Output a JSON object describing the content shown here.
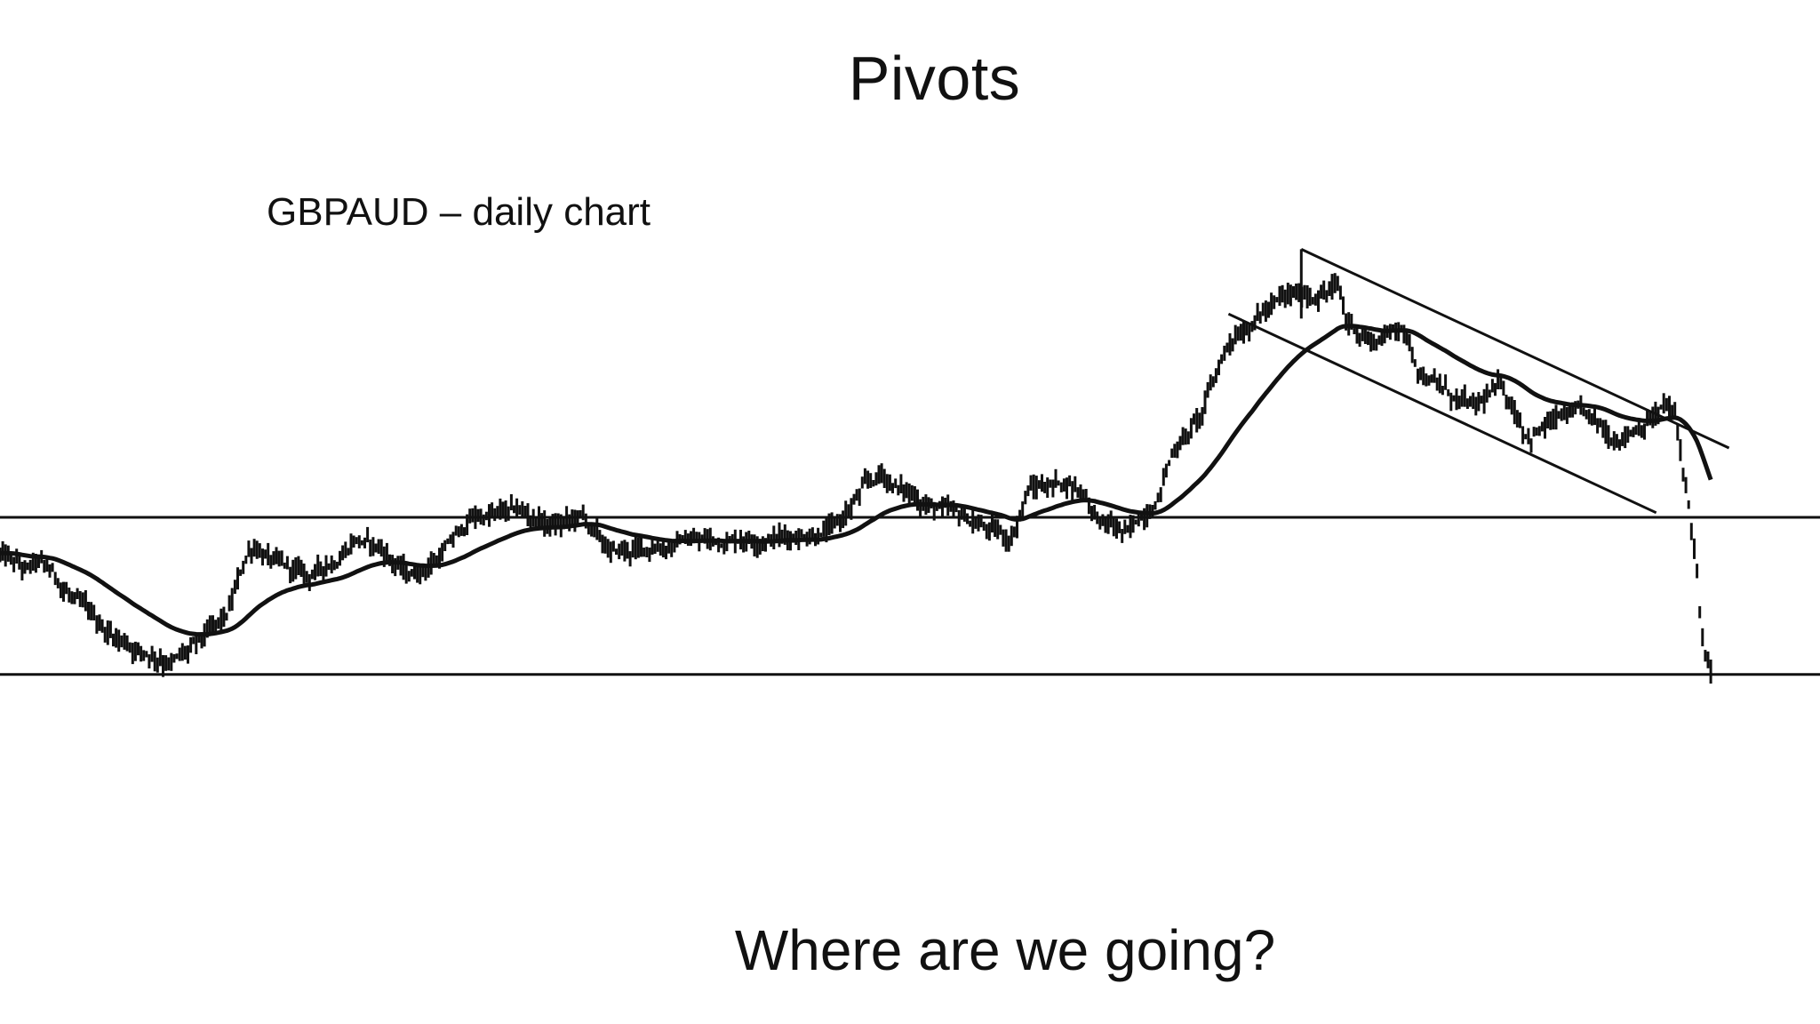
{
  "slide": {
    "title": "Pivots",
    "question": "Where are we going?"
  },
  "chart_data": {
    "type": "line",
    "title": "GBPAUD – daily chart",
    "series_color": "#111111",
    "grid": false,
    "legend": "none",
    "axis_labels_shown": false,
    "xlim": [
      0,
      100
    ],
    "ylim": [
      0,
      100
    ],
    "price_anchors": [
      [
        0.0,
        32
      ],
      [
        1.5,
        28
      ],
      [
        2.0,
        30
      ],
      [
        3.0,
        27
      ],
      [
        4.5,
        20
      ],
      [
        6.0,
        15
      ],
      [
        8.0,
        11
      ],
      [
        9.5,
        9
      ],
      [
        10.5,
        11
      ],
      [
        12.5,
        18
      ],
      [
        13.5,
        31
      ],
      [
        14.0,
        34
      ],
      [
        15.5,
        29
      ],
      [
        17.0,
        27
      ],
      [
        18.5,
        31
      ],
      [
        19.5,
        36
      ],
      [
        21.0,
        33
      ],
      [
        22.5,
        27
      ],
      [
        24.0,
        31
      ],
      [
        26.0,
        40
      ],
      [
        28.5,
        41
      ],
      [
        30.5,
        38
      ],
      [
        32.0,
        40
      ],
      [
        33.5,
        32
      ],
      [
        35.5,
        33
      ],
      [
        37.5,
        35
      ],
      [
        39.5,
        35
      ],
      [
        41.0,
        36
      ],
      [
        43.5,
        36
      ],
      [
        46.0,
        38
      ],
      [
        47.5,
        46
      ],
      [
        48.5,
        49
      ],
      [
        49.5,
        46
      ],
      [
        51.0,
        43
      ],
      [
        52.5,
        40
      ],
      [
        54.0,
        38
      ],
      [
        55.5,
        35
      ],
      [
        56.5,
        46
      ],
      [
        58.5,
        48
      ],
      [
        59.5,
        46
      ],
      [
        60.5,
        39
      ],
      [
        62.0,
        36
      ],
      [
        63.5,
        44
      ],
      [
        64.5,
        55
      ],
      [
        66.0,
        62
      ],
      [
        67.5,
        78
      ],
      [
        69.0,
        84
      ],
      [
        70.5,
        87
      ],
      [
        72.0,
        88
      ],
      [
        73.5,
        90
      ],
      [
        74.0,
        82
      ],
      [
        75.5,
        78
      ],
      [
        77.0,
        82
      ],
      [
        78.0,
        72
      ],
      [
        79.5,
        67
      ],
      [
        81.0,
        63
      ],
      [
        82.5,
        68
      ],
      [
        84.0,
        58
      ],
      [
        85.5,
        61
      ],
      [
        87.0,
        62
      ],
      [
        88.5,
        57
      ],
      [
        90.0,
        60
      ],
      [
        91.5,
        64
      ],
      [
        92.0,
        62
      ],
      [
        92.7,
        45
      ],
      [
        93.2,
        30
      ],
      [
        93.5,
        13
      ],
      [
        94.0,
        5
      ]
    ],
    "series": [
      {
        "type": "ohlc-bars",
        "noise": 1.8,
        "points": 620
      },
      {
        "type": "moving-average",
        "smoothing": 0.04
      }
    ],
    "horizontal_lines": [
      40,
      6
    ],
    "trendlines": [
      {
        "from": [
          71.5,
          98
        ],
        "to": [
          95.0,
          55
        ]
      },
      {
        "from": [
          67.5,
          84
        ],
        "to": [
          91.0,
          41
        ]
      }
    ],
    "peak_marker": {
      "x": 71.5,
      "from": 98,
      "to": 83
    }
  }
}
